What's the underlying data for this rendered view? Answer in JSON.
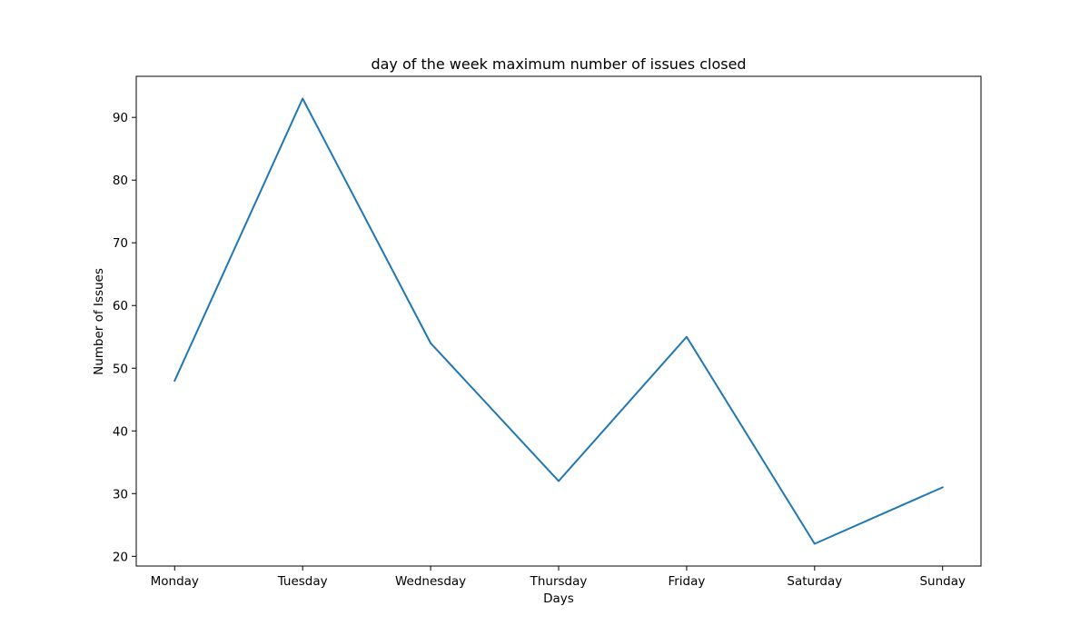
{
  "chart_data": {
    "type": "line",
    "title": "day of the week maximum number of issues closed",
    "xlabel": "Days",
    "ylabel": "Number of Issues",
    "categories": [
      "Monday",
      "Tuesday",
      "Wednesday",
      "Thursday",
      "Friday",
      "Saturday",
      "Sunday"
    ],
    "series": [
      {
        "values": [
          48,
          93,
          54,
          32,
          55,
          22,
          31
        ],
        "color": "#1f77b4"
      }
    ],
    "ylim": [
      18.45,
      96.55
    ],
    "yticks": [
      20,
      30,
      40,
      50,
      60,
      70,
      80,
      90
    ],
    "grid": false,
    "legend": "none"
  }
}
